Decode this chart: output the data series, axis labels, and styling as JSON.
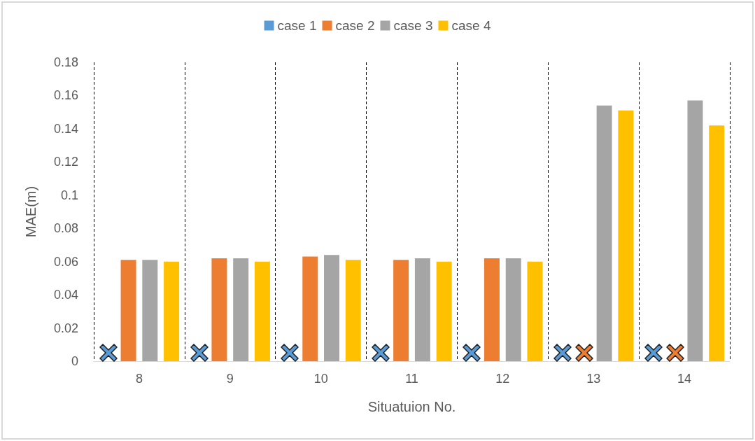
{
  "chart_data": {
    "type": "bar",
    "xlabel": "Situatuion No.",
    "ylabel": "MAE(m)",
    "categories": [
      "8",
      "9",
      "10",
      "11",
      "12",
      "13",
      "14"
    ],
    "series": [
      {
        "name": "case 1",
        "color": "#5b9bd5",
        "values": [
          null,
          null,
          null,
          null,
          null,
          null,
          null
        ]
      },
      {
        "name": "case 2",
        "color": "#ed7d31",
        "values": [
          0.061,
          0.062,
          0.063,
          0.061,
          0.062,
          null,
          null
        ]
      },
      {
        "name": "case 3",
        "color": "#a5a5a5",
        "values": [
          0.061,
          0.062,
          0.064,
          0.062,
          0.062,
          0.154,
          0.157
        ]
      },
      {
        "name": "case 4",
        "color": "#ffc000",
        "values": [
          0.06,
          0.06,
          0.061,
          0.06,
          0.06,
          0.151,
          0.142
        ]
      }
    ],
    "ylim": [
      0,
      0.18
    ],
    "yticks": [
      0,
      0.02,
      0.04,
      0.06,
      0.08,
      0.1,
      0.12,
      0.14,
      0.16,
      0.18
    ],
    "grid": "x",
    "legend": "top"
  }
}
